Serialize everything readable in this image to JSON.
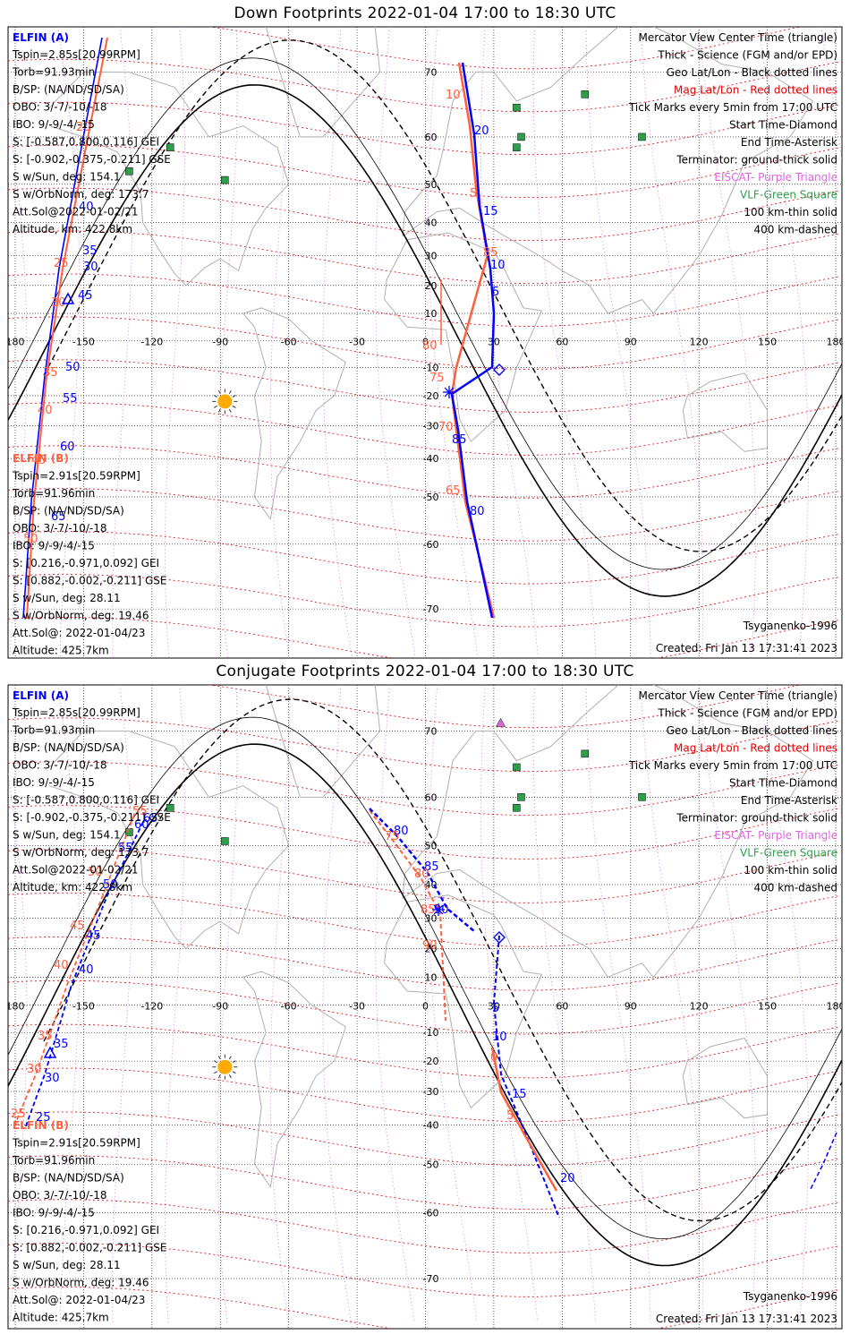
{
  "panels": [
    {
      "id": "down",
      "title": "Down Footprints 2022-01-04 17:00 to 18:30 UTC",
      "elfin_a": {
        "name": "ELFIN (A)",
        "lines": [
          "Tspin=2.85s[20.99RPM]",
          "Torb=91.93min",
          "B/SP: (NA/ND/SD/SA)",
          "OBO: 3/-7/-10/-18",
          "IBO: 9/-9/-4/-15",
          "S: [-0.587,0.800,0.116] GEI",
          "S: [-0.902,-0.375,-0.211] GSE",
          "S w/Sun, deg: 154.1",
          "S w/OrbNorm, deg: 173.7",
          "Att.Sol@2022-01-02/21",
          "Altitude, km: 422.8km"
        ]
      },
      "elfin_b": {
        "name": "ELFIN (B)",
        "lines": [
          "Tspin=2.91s[20.59RPM]",
          "Torb=91.96min",
          "B/SP: (NA/ND/SD/SA)",
          "OBO: 3/-7/-10/-18",
          "IBO: 9/-9/-4/-15",
          "S: [0.216,-0.971,0.092] GEI",
          "S: [0.882,-0.002,-0.211] GSE",
          "S w/Sun, deg: 28.11",
          "S w/OrbNorm, deg: 19.46",
          "Att.Sol@: 2022-01-04/23",
          "Altitude: 425.7km"
        ]
      },
      "legend": [
        "Mercator View Center Time (triangle)",
        "Thick - Science (FGM and/or EPD)",
        "Geo Lat/Lon - Black dotted lines",
        "Mag Lat/Lon - Red dotted lines",
        "Tick Marks every 5min from 17:00 UTC",
        "Start Time-Diamond",
        "End Time-Asterisk",
        "Terminator: ground-thick solid",
        "EISCAT- Purple Triangle",
        "VLF-Green Square",
        "100 km-thin solid",
        "400 km-dashed"
      ],
      "model": "Tsyganenko-1996",
      "created": "Created: Fri Jan 13 17:31:41 2023",
      "map_labels": {
        "lon_ticks": [
          "180",
          "-150",
          "-120",
          "-90",
          "-60",
          "-30",
          "0",
          "30",
          "60",
          "90",
          "120",
          "150",
          "180"
        ],
        "lat_ticks": [
          "70",
          "60",
          "50",
          "40",
          "30",
          "20",
          "10",
          "-10",
          "-20",
          "-30",
          "-40",
          "-50",
          "-60",
          "-70"
        ],
        "a_ticks": [
          "30",
          "35",
          "40",
          "45",
          "50",
          "55",
          "60",
          "65"
        ],
        "b_ticks": [
          "20",
          "25",
          "30",
          "35",
          "40",
          "45",
          "50"
        ],
        "a_ticks2": [
          "20",
          "15",
          "10",
          "5",
          "85",
          "80"
        ],
        "b_ticks2": [
          "10",
          "5",
          "85",
          "80",
          "75",
          "70",
          "65"
        ]
      }
    },
    {
      "id": "conjugate",
      "title": "Conjugate Footprints 2022-01-04 17:00 to 18:30 UTC",
      "elfin_a": {
        "name": "ELFIN (A)",
        "lines": [
          "Tspin=2.85s[20.99RPM]",
          "Torb=91.93min",
          "B/SP: (NA/ND/SD/SA)",
          "OBO: 3/-7/-10/-18",
          "IBO: 9/-9/-4/-15",
          "S: [-0.587,0.800,0.116] GEI",
          "S: [-0.902,-0.375,-0.211] GSE",
          "S w/Sun, deg: 154.1",
          "S w/OrbNorm, deg: 173.7",
          "Att.Sol@2022-01-02/21",
          "Altitude, km: 422.8km"
        ]
      },
      "elfin_b": {
        "name": "ELFIN (B)",
        "lines": [
          "Tspin=2.91s[20.59RPM]",
          "Torb=91.96min",
          "B/SP: (NA/ND/SD/SA)",
          "OBO: 3/-7/-10/-18",
          "IBO: 9/-9/-4/-15",
          "S: [0.216,-0.971,0.092] GEI",
          "S: [0.882,-0.002,-0.211] GSE",
          "S w/Sun, deg: 28.11",
          "S w/OrbNorm, deg: 19.46",
          "Att.Sol@: 2022-01-04/23",
          "Altitude: 425.7km"
        ]
      },
      "legend": [
        "Mercator View Center Time (triangle)",
        "Thick - Science (FGM and/or EPD)",
        "Geo Lat/Lon - Black dotted lines",
        "Mag Lat/Lon - Red dotted lines",
        "Tick Marks every 5min from 17:00 UTC",
        "Start Time-Diamond",
        "End Time-Asterisk",
        "Terminator: ground-thick solid",
        "EISCAT- Purple Triangle",
        "VLF-Green Square",
        "100 km-thin solid",
        "400 km-dashed"
      ],
      "model": "Tsyganenko-1996",
      "created": "Created: Fri Jan 13 17:31:41 2023",
      "map_labels": {
        "lon_ticks": [
          "180",
          "-150",
          "-120",
          "-90",
          "-60",
          "-30",
          "0",
          "30",
          "60",
          "90",
          "120",
          "150",
          "180"
        ],
        "lat_ticks": [
          "70",
          "60",
          "50",
          "40",
          "30",
          "20",
          "10",
          "-10",
          "-20",
          "-30",
          "-40",
          "-50",
          "-60",
          "-70"
        ],
        "a_ticks": [
          "25",
          "30",
          "35",
          "40",
          "45",
          "50",
          "55",
          "60",
          "65"
        ],
        "b_ticks": [
          "25",
          "30",
          "35",
          "40",
          "45",
          "50",
          "55"
        ],
        "a_ticks2": [
          "80",
          "85",
          "90",
          "5",
          "10",
          "15",
          "20"
        ],
        "b_ticks2": [
          "75",
          "80",
          "85",
          "90",
          "0",
          "5"
        ]
      }
    }
  ],
  "colors": {
    "elfin_a": "#0000ff",
    "elfin_b": "#ff5f3f",
    "geo_grid": "#000000",
    "mag_grid": "#e00000",
    "meridian": "#dd66dd",
    "eiscat": "#dd66dd",
    "vlf": "#2e9e4a",
    "sun": "#ffaa00",
    "coast": "#b0b0b0"
  }
}
